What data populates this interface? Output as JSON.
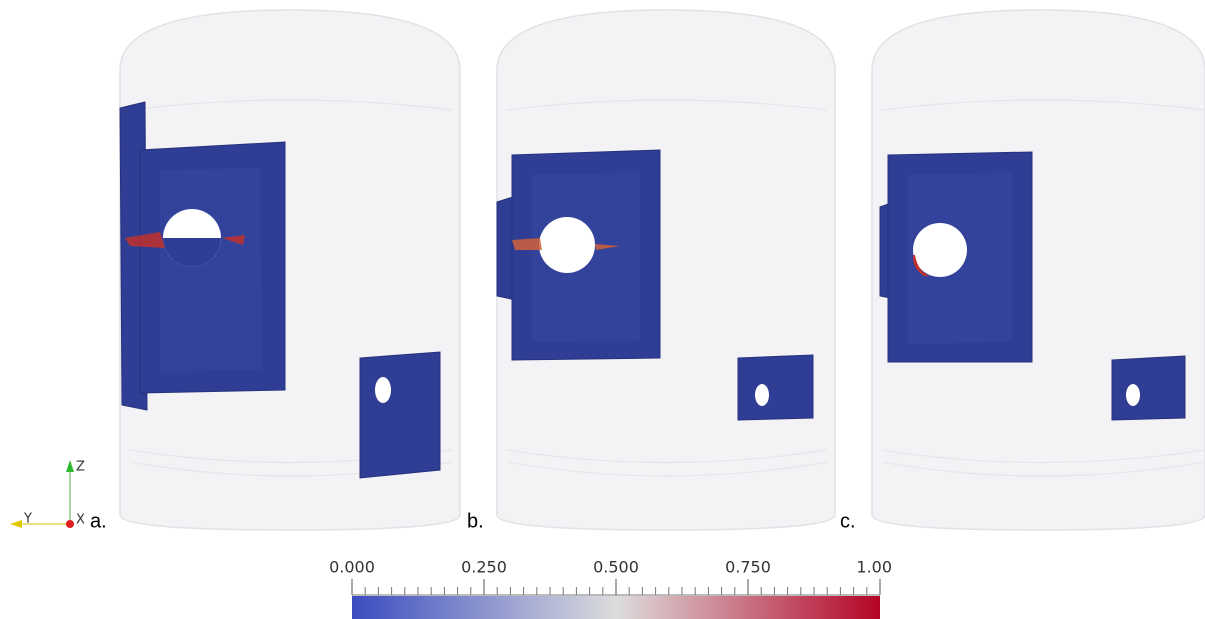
{
  "panels": [
    {
      "label": "a."
    },
    {
      "label": "b."
    },
    {
      "label": "c."
    }
  ],
  "axes_triad": {
    "z": "Z",
    "y": "Y",
    "x": "X"
  },
  "colorbar": {
    "range": [
      0,
      1
    ],
    "ticks": [
      {
        "value": 0,
        "label": "0.000"
      },
      {
        "value": 0.25,
        "label": "0.250"
      },
      {
        "value": 0.5,
        "label": "0.500"
      },
      {
        "value": 0.75,
        "label": "0.750"
      },
      {
        "value": 1,
        "label": "1.00"
      }
    ],
    "colormap": [
      "#3b4cc0",
      "#dddddd",
      "#b40426"
    ]
  }
}
